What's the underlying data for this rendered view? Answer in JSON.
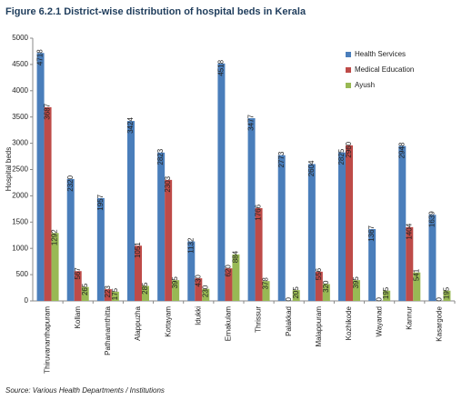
{
  "chart_data": {
    "type": "bar",
    "title": "Figure 6.2.1 District-wise distribution of hospital beds in Kerala",
    "y_label": "Hospital beds",
    "source": "Source: Various Health Departments / Institutions",
    "categories": [
      "Thiruvananthapuram",
      "Kollam",
      "Pathanamthitta",
      "Alappuzha",
      "Kottayam",
      "Idukki",
      "Ernakulam",
      "Thrissur",
      "Palakkad",
      "Malappuram",
      "Kozhikode",
      "Wayanad",
      "Kannur",
      "Kasargode"
    ],
    "series": [
      {
        "name": "Health Services",
        "color": "#4a7ebb",
        "values": [
          4718,
          2320,
          1957,
          3424,
          2823,
          1132,
          4518,
          3477,
          2773,
          2604,
          2825,
          1367,
          2948,
          1639
        ]
      },
      {
        "name": "Medical Education",
        "color": "#be4b48",
        "values": [
          3687,
          567,
          223,
          1051,
          2303,
          430,
          620,
          1766,
          0,
          556,
          2960,
          0,
          1404,
          0
        ]
      },
      {
        "name": "Ayush",
        "color": "#98b954",
        "values": [
          1292,
          265,
          175,
          285,
          395,
          230,
          884,
          378,
          205,
          320,
          395,
          195,
          541,
          195
        ]
      }
    ],
    "ylim": [
      0,
      5000
    ],
    "yticks": [
      0,
      500,
      1000,
      1500,
      2000,
      2500,
      3000,
      3500,
      4000,
      4500,
      5000
    ],
    "legend": "top-right"
  }
}
